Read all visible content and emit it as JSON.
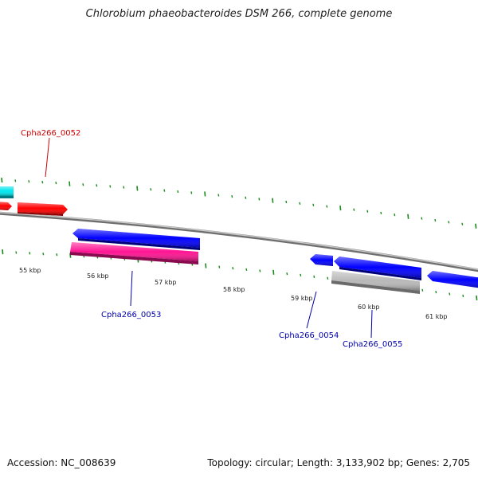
{
  "title": "Chlorobium phaeobacteroides DSM 266, complete genome",
  "footer": {
    "accession": "Accession: NC_008639",
    "summary": "Topology: circular; Length: 3,133,902 bp; Genes: 2,705"
  },
  "colors": {
    "backbone": "#8a8a8a",
    "tick": "#1a8a1a",
    "red": "#ff0000",
    "cyan": "#00e5ee",
    "blue": "#0000ff",
    "magenta": "#ff1493",
    "gray": "#b8b8b8",
    "label_red": "#cc0000",
    "label_blue": "#0000aa"
  },
  "scale_labels": [
    "55 kbp",
    "56 kbp",
    "57 kbp",
    "58 kbp",
    "59 kbp",
    "60 kbp",
    "61 kbp"
  ],
  "gene_labels": [
    {
      "name": "Cpha266_0052",
      "color": "label_red"
    },
    {
      "name": "Cpha266_0053",
      "color": "label_blue"
    },
    {
      "name": "Cpha266_0054",
      "color": "label_blue"
    },
    {
      "name": "Cpha266_0055",
      "color": "label_blue"
    }
  ]
}
